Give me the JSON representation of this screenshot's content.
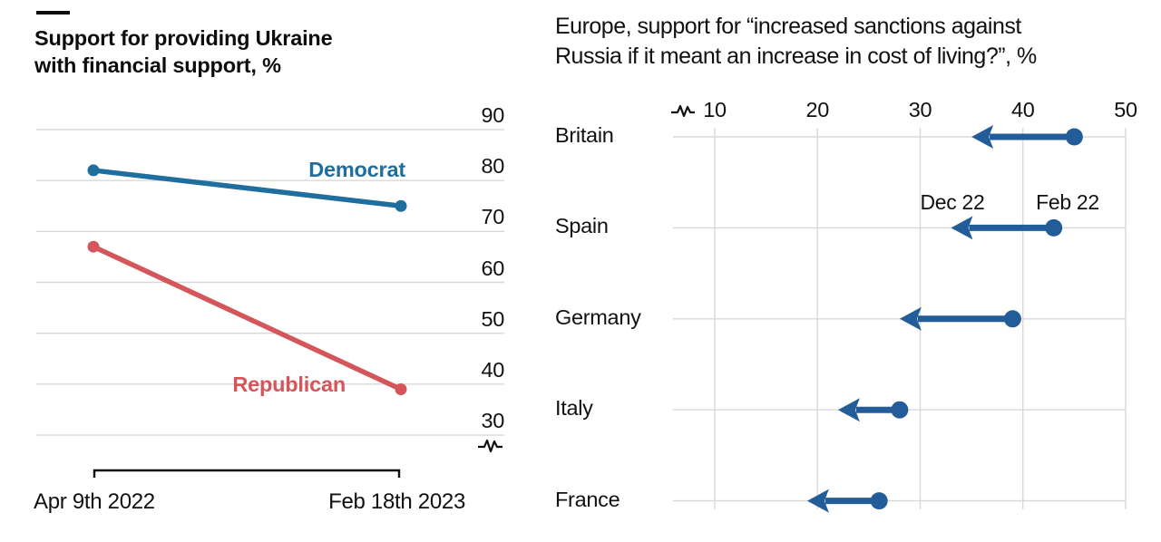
{
  "page": {
    "background": "#ffffff",
    "top_rule_color": "#0d0d0d"
  },
  "chart_data": [
    {
      "type": "line",
      "subtype": "slope",
      "title": "Support for providing Ukraine with financial support, %",
      "title_lines": [
        "Support for providing Ukraine",
        "with financial support, %"
      ],
      "x_labels": [
        "Apr 9th 2022",
        "Feb 18th 2023"
      ],
      "yticks": [
        90,
        80,
        70,
        60,
        50,
        40,
        30
      ],
      "ylim": [
        27,
        93
      ],
      "axis_break": true,
      "grid": "horizontal",
      "gridline_color": "#d8d8d8",
      "series": [
        {
          "name": "Democrat",
          "color": "#1f6e9e",
          "values": [
            82,
            75
          ]
        },
        {
          "name": "Republican",
          "color": "#d4555a",
          "values": [
            67,
            39
          ]
        }
      ]
    },
    {
      "type": "arrow",
      "subtype": "dumbbell-arrow",
      "title": "Europe, support for “increased sanctions against Russia if it meant an increase in cost of living?”, %",
      "title_lines": [
        "Europe, support for “increased sanctions against",
        "Russia if it meant an increase in cost of living?”, %"
      ],
      "categories": [
        "Britain",
        "Spain",
        "Germany",
        "Italy",
        "France"
      ],
      "series": [
        {
          "name": "Feb 22",
          "values": [
            45,
            43,
            39,
            28,
            26
          ]
        },
        {
          "name": "Dec 22",
          "values": [
            35,
            33,
            28,
            22,
            19
          ]
        }
      ],
      "xticks": [
        10,
        20,
        30,
        40,
        50
      ],
      "xlim": [
        6,
        52
      ],
      "axis_break": true,
      "grid": "both",
      "gridline_color": "#d8d8d8",
      "arrow_color": "#235d99",
      "annotation_row": "Spain"
    }
  ]
}
